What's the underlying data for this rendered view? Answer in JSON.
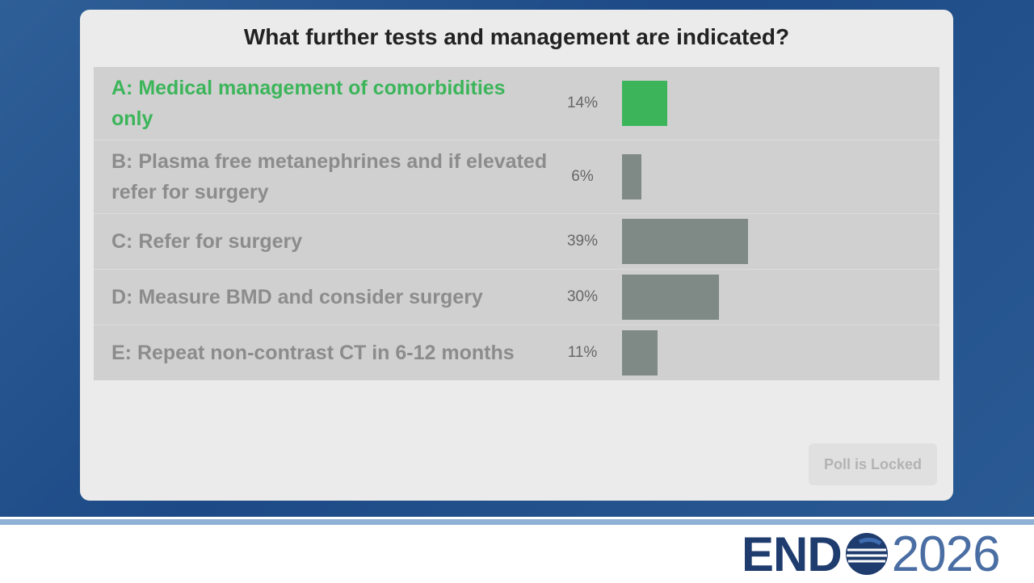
{
  "poll": {
    "question": "What further tests and management are indicated?",
    "options": [
      {
        "text": "A: Medical management of comorbidities only",
        "percent": 14,
        "percent_label": "14%",
        "color": "#3cb55a"
      },
      {
        "text": "B: Plasma free metanephrines and if elevated refer for surgery",
        "percent": 6,
        "percent_label": "6%",
        "color": "#7f8a87"
      },
      {
        "text": "C: Refer for surgery",
        "percent": 39,
        "percent_label": "39%",
        "color": "#7f8a87"
      },
      {
        "text": "D: Measure BMD and consider surgery",
        "percent": 30,
        "percent_label": "30%",
        "color": "#7f8a87"
      },
      {
        "text": "E: Repeat non-contrast CT in 6-12 months",
        "percent": 11,
        "percent_label": "11%",
        "color": "#7f8a87"
      }
    ],
    "button": "Poll is Locked"
  },
  "logo": {
    "brand": "END",
    "year": "2026"
  }
}
